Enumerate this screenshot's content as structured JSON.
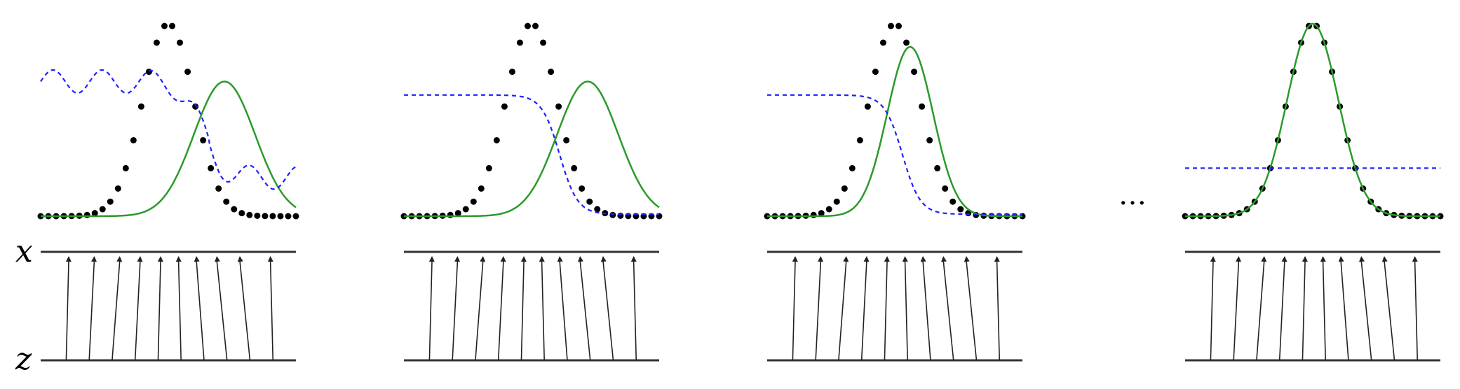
{
  "labels": {
    "x_axis": "x",
    "z_axis": "z",
    "ellipsis": "…"
  },
  "colors": {
    "target_dots": "#000000",
    "model": "#2a9a2a",
    "discriminator": "#1f1fff",
    "lines": "#444444"
  },
  "chart_data": {
    "type": "diagram",
    "panels": [
      {
        "index": 1,
        "model_mu": 0.72,
        "model_sigma": 0.12,
        "model_amp": 0.7,
        "disc": "wave",
        "z_mapping": [
          0.11,
          0.21,
          0.31,
          0.39,
          0.47,
          0.54,
          0.61,
          0.69,
          0.78,
          0.9
        ]
      },
      {
        "index": 2,
        "model_mu": 0.72,
        "model_sigma": 0.12,
        "model_amp": 0.7,
        "disc": "sigmoid",
        "z_mapping": [
          0.11,
          0.21,
          0.31,
          0.39,
          0.47,
          0.54,
          0.61,
          0.69,
          0.78,
          0.9
        ]
      },
      {
        "index": 3,
        "model_mu": 0.56,
        "model_sigma": 0.09,
        "model_amp": 0.88,
        "disc": "sigmoid",
        "z_mapping": [
          0.11,
          0.21,
          0.31,
          0.39,
          0.47,
          0.54,
          0.61,
          0.69,
          0.78,
          0.9
        ]
      },
      {
        "index": 4,
        "model_mu": 0.5,
        "model_sigma": 0.1,
        "model_amp": 1.0,
        "disc": "flat",
        "z_mapping": [
          0.11,
          0.21,
          0.31,
          0.39,
          0.47,
          0.54,
          0.61,
          0.69,
          0.78,
          0.9
        ]
      }
    ],
    "target": {
      "mu": 0.5,
      "sigma": 0.1,
      "amp": 1.0,
      "dot_count": 34
    }
  }
}
